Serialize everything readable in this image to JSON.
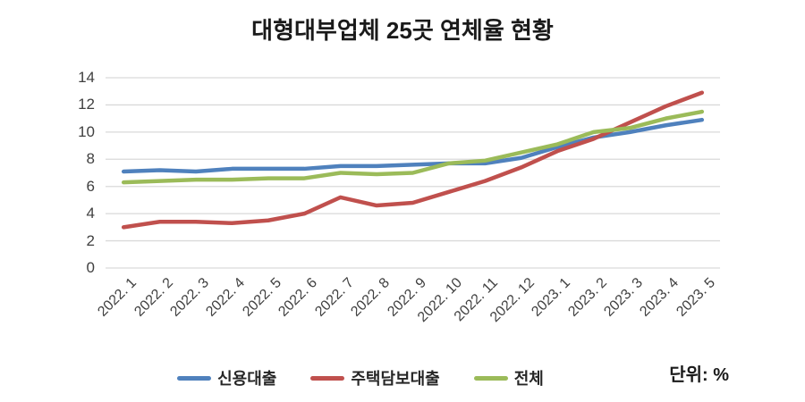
{
  "title": "대형대부업체 25곳 연체율 현황",
  "unit_label": "단위: %",
  "colors": {
    "grid": "#d9d9d9",
    "axis_text": "#404040",
    "title_text": "#1a1a1a",
    "background": "#ffffff",
    "series_blue": "#4f81bd",
    "series_red": "#c0504d",
    "series_green": "#9bbb59"
  },
  "chart_data": {
    "type": "line",
    "title": "대형대부업체 25곳 연체율 현황",
    "unit": "%",
    "xlabel": "",
    "ylabel": "",
    "ylim": [
      0,
      14
    ],
    "ytick_step": 2,
    "grid": true,
    "legend_position": "bottom",
    "categories": [
      "2022. 1",
      "2022. 2",
      "2022. 3",
      "2022. 4",
      "2022. 5",
      "2022. 6",
      "2022. 7",
      "2022. 8",
      "2022. 9",
      "2022. 10",
      "2022. 11",
      "2022. 12",
      "2023. 1",
      "2023. 2",
      "2023. 3",
      "2023. 4",
      "2023. 5"
    ],
    "series": [
      {
        "name": "신용대출",
        "color": "#4f81bd",
        "values": [
          7.1,
          7.2,
          7.1,
          7.3,
          7.3,
          7.3,
          7.5,
          7.5,
          7.6,
          7.7,
          7.7,
          8.1,
          8.9,
          9.6,
          10.0,
          10.5,
          10.9
        ]
      },
      {
        "name": "주택담보대출",
        "color": "#c0504d",
        "values": [
          3.0,
          3.4,
          3.4,
          3.3,
          3.5,
          4.0,
          5.2,
          4.6,
          4.8,
          5.6,
          6.4,
          7.4,
          8.6,
          9.5,
          10.7,
          11.9,
          12.9
        ]
      },
      {
        "name": "전체",
        "color": "#9bbb59",
        "values": [
          6.3,
          6.4,
          6.5,
          6.5,
          6.6,
          6.6,
          7.0,
          6.9,
          7.0,
          7.7,
          7.9,
          8.5,
          9.1,
          10.0,
          10.3,
          11.0,
          11.5
        ]
      }
    ]
  }
}
